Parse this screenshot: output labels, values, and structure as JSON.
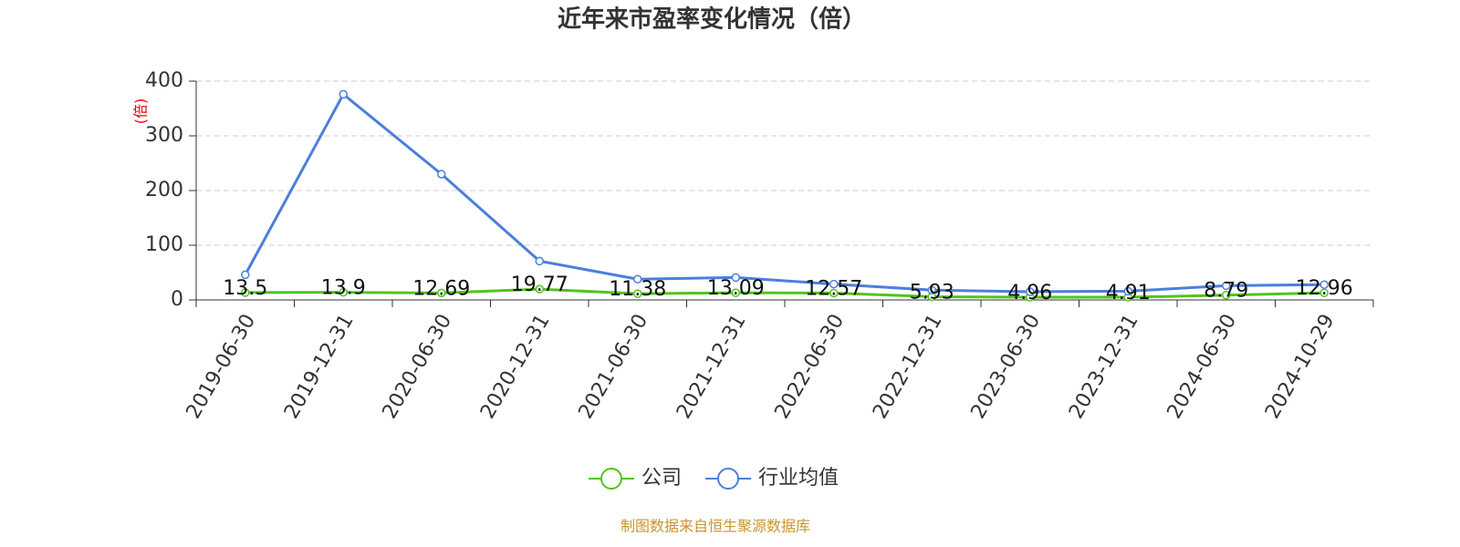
{
  "chart_data": {
    "type": "line",
    "title": "近年来市盈率变化情况（倍）",
    "y_label": "(倍)",
    "source": "制图数据来自恒生聚源数据库",
    "categories": [
      "2019-06-30",
      "2019-12-31",
      "2020-06-30",
      "2020-12-31",
      "2021-06-30",
      "2021-12-31",
      "2022-06-30",
      "2022-12-31",
      "2023-06-30",
      "2023-12-31",
      "2024-06-30",
      "2024-10-29"
    ],
    "series": [
      {
        "name": "公司",
        "color": "#52c41a",
        "values": [
          13.5,
          13.9,
          12.69,
          19.77,
          11.38,
          13.09,
          12.57,
          5.93,
          4.96,
          4.91,
          8.79,
          12.96
        ],
        "labels": true
      },
      {
        "name": "行业均值",
        "color": "#4a7fdc",
        "values": [
          46,
          376,
          230,
          71,
          38,
          41,
          29,
          18,
          15,
          16,
          26,
          28
        ],
        "labels": false
      }
    ],
    "ylim": [
      0,
      400
    ],
    "yticks": [
      0,
      100,
      200,
      300,
      400
    ],
    "grid": true
  }
}
